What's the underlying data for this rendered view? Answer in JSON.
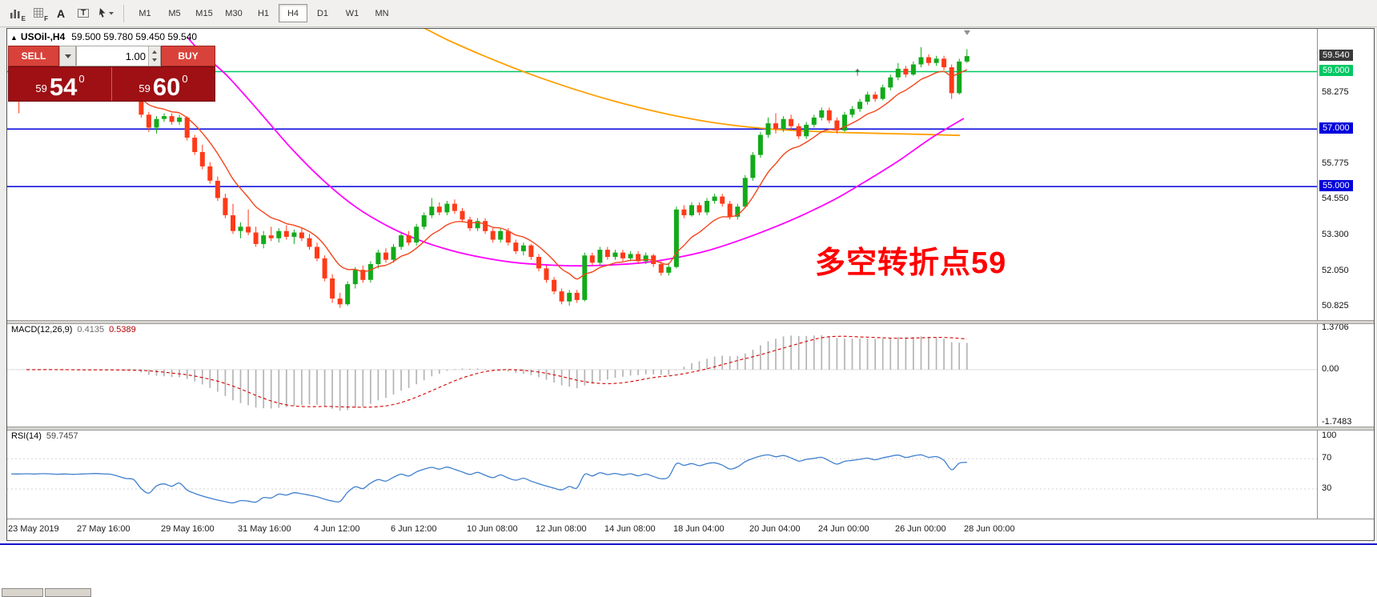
{
  "toolbar": {
    "icons": [
      {
        "name": "chart-window-icon",
        "glyph": "bars",
        "label": "E"
      },
      {
        "name": "grid-icon",
        "glyph": "grid",
        "label": "F"
      },
      {
        "name": "insert-text-icon",
        "glyph": "none",
        "label": "A"
      },
      {
        "name": "text-label-icon",
        "glyph": "box",
        "label": "T"
      },
      {
        "name": "cursor-tool-icon",
        "glyph": "cursor",
        "label": ""
      }
    ],
    "timeframes": [
      "M1",
      "M5",
      "M15",
      "M30",
      "H1",
      "H4",
      "D1",
      "W1",
      "MN"
    ],
    "active_timeframe": "H4"
  },
  "chart_window": {
    "title_arrow": "▲",
    "symbol_title": "USOil-,H4",
    "ohlc_text": "59.500 59.780 59.450 59.540",
    "annotation": {
      "text": "多空转折点59",
      "color": "#ff0000"
    },
    "marker_cross": "†"
  },
  "trade_panel": {
    "sell_label": "SELL",
    "buy_label": "BUY",
    "volume": "1.00",
    "sell_price": {
      "prefix": "59",
      "big": "54",
      "sup": "0"
    },
    "buy_price": {
      "prefix": "59",
      "big": "60",
      "sup": "0"
    }
  },
  "chart_data": {
    "type": "candlestick",
    "symbol": "USOil",
    "timeframe": "H4",
    "title": "USOil-,H4",
    "ohlc_current": {
      "open": 59.5,
      "high": 59.78,
      "low": 59.45,
      "close": 59.54
    },
    "ylim": [
      50.35,
      60.49
    ],
    "colors": {
      "up": "#12aa1a",
      "down": "#ff3a18"
    },
    "horizontal_lines": [
      {
        "price": 59.0,
        "color": "#00c864"
      },
      {
        "price": 57.0,
        "color": "#0000dc"
      },
      {
        "price": 55.0,
        "color": "#0000dc"
      }
    ],
    "y_axis": {
      "ticks": [
        {
          "label": "58.275",
          "price": 58.275
        },
        {
          "label": "55.775",
          "price": 55.775
        },
        {
          "label": "54.550",
          "price": 54.55
        },
        {
          "label": "53.300",
          "price": 53.3
        },
        {
          "label": "52.050",
          "price": 52.05
        },
        {
          "label": "50.825",
          "price": 50.825
        }
      ],
      "tags": [
        {
          "label": "59.540",
          "price": 59.54,
          "bg": "#3a3a3a"
        },
        {
          "label": "59.000",
          "price": 59.0,
          "bg": "#00c864"
        },
        {
          "label": "57.000",
          "price": 57.0,
          "bg": "#0000dc"
        },
        {
          "label": "55.000",
          "price": 55.0,
          "bg": "#0000dc"
        }
      ]
    },
    "x_axis_labels": [
      {
        "i": 0,
        "label": "23 May 2019"
      },
      {
        "i": 9,
        "label": "27 May 16:00"
      },
      {
        "i": 20,
        "label": "29 May 16:00"
      },
      {
        "i": 30,
        "label": "31 May 16:00"
      },
      {
        "i": 40,
        "label": "4 Jun 12:00"
      },
      {
        "i": 50,
        "label": "6 Jun 12:00"
      },
      {
        "i": 60,
        "label": "10 Jun 08:00"
      },
      {
        "i": 69,
        "label": "12 Jun 08:00"
      },
      {
        "i": 78,
        "label": "14 Jun 08:00"
      },
      {
        "i": 87,
        "label": "18 Jun 04:00"
      },
      {
        "i": 97,
        "label": "20 Jun 04:00"
      },
      {
        "i": 106,
        "label": "24 Jun 00:00"
      },
      {
        "i": 116,
        "label": "26 Jun 00:00"
      },
      {
        "i": 125,
        "label": "28 Jun 00:00"
      }
    ],
    "candles": [
      [
        58.2,
        58.4,
        58.05,
        58.3
      ],
      [
        58.3,
        58.4,
        57.55,
        58.25
      ],
      [
        58.25,
        58.45,
        58.15,
        58.35
      ],
      [
        58.35,
        58.45,
        58.15,
        58.25
      ],
      [
        58.25,
        58.5,
        58.15,
        58.4
      ],
      [
        58.4,
        58.5,
        58.2,
        58.3
      ],
      [
        58.3,
        58.4,
        58.05,
        58.15
      ],
      [
        58.15,
        58.35,
        58.05,
        58.25
      ],
      [
        58.25,
        58.35,
        58.0,
        58.1
      ],
      [
        58.1,
        58.3,
        58.0,
        58.2
      ],
      [
        58.2,
        58.45,
        58.1,
        58.35
      ],
      [
        58.35,
        58.55,
        58.25,
        58.45
      ],
      [
        58.45,
        58.55,
        58.2,
        58.3
      ],
      [
        58.3,
        58.4,
        58.05,
        58.15
      ],
      [
        58.15,
        58.3,
        58.05,
        58.2
      ],
      [
        58.2,
        58.3,
        58.0,
        58.1
      ],
      [
        58.1,
        58.2,
        57.95,
        58.05
      ],
      [
        58.05,
        58.15,
        57.4,
        57.5
      ],
      [
        57.5,
        57.6,
        56.9,
        57.05
      ],
      [
        57.05,
        57.45,
        56.85,
        57.35
      ],
      [
        57.35,
        57.55,
        57.25,
        57.45
      ],
      [
        57.45,
        57.55,
        57.15,
        57.25
      ],
      [
        57.25,
        57.5,
        57.15,
        57.4
      ],
      [
        57.4,
        57.45,
        56.6,
        56.7
      ],
      [
        56.7,
        56.8,
        56.1,
        56.2
      ],
      [
        56.2,
        56.45,
        55.6,
        55.7
      ],
      [
        55.7,
        55.85,
        55.1,
        55.2
      ],
      [
        55.2,
        55.35,
        54.5,
        54.6
      ],
      [
        54.6,
        54.75,
        53.9,
        54.0
      ],
      [
        54.0,
        54.4,
        53.35,
        53.45
      ],
      [
        53.45,
        53.75,
        53.2,
        53.6
      ],
      [
        53.6,
        54.2,
        53.3,
        53.4
      ],
      [
        53.4,
        53.6,
        52.9,
        53.0
      ],
      [
        53.0,
        53.45,
        52.85,
        53.3
      ],
      [
        53.3,
        53.6,
        53.1,
        53.2
      ],
      [
        53.2,
        53.55,
        53.05,
        53.45
      ],
      [
        53.45,
        53.65,
        53.15,
        53.25
      ],
      [
        53.25,
        53.5,
        53.0,
        53.4
      ],
      [
        53.4,
        53.55,
        53.1,
        53.2
      ],
      [
        53.2,
        53.35,
        52.8,
        52.9
      ],
      [
        52.9,
        53.05,
        52.4,
        52.5
      ],
      [
        52.5,
        52.6,
        51.7,
        51.8
      ],
      [
        51.8,
        51.95,
        50.95,
        51.1
      ],
      [
        51.1,
        51.3,
        50.78,
        50.9
      ],
      [
        50.9,
        51.7,
        50.85,
        51.6
      ],
      [
        51.6,
        52.2,
        51.45,
        52.1
      ],
      [
        52.1,
        52.25,
        51.65,
        51.75
      ],
      [
        51.75,
        52.4,
        51.65,
        52.3
      ],
      [
        52.3,
        52.8,
        52.15,
        52.7
      ],
      [
        52.7,
        52.85,
        52.35,
        52.45
      ],
      [
        52.45,
        53.0,
        52.35,
        52.9
      ],
      [
        52.9,
        53.4,
        52.8,
        53.3
      ],
      [
        53.3,
        53.45,
        52.95,
        53.05
      ],
      [
        53.05,
        53.7,
        52.95,
        53.6
      ],
      [
        53.6,
        54.1,
        53.5,
        54.0
      ],
      [
        54.0,
        54.6,
        53.9,
        54.3
      ],
      [
        54.3,
        54.45,
        54.0,
        54.1
      ],
      [
        54.1,
        54.5,
        54.0,
        54.4
      ],
      [
        54.4,
        54.55,
        54.05,
        54.15
      ],
      [
        54.15,
        54.25,
        53.75,
        53.85
      ],
      [
        53.85,
        53.95,
        53.45,
        53.55
      ],
      [
        53.55,
        53.9,
        53.45,
        53.8
      ],
      [
        53.8,
        53.9,
        53.35,
        53.45
      ],
      [
        53.45,
        53.55,
        53.05,
        53.15
      ],
      [
        53.15,
        53.55,
        53.05,
        53.45
      ],
      [
        53.45,
        53.55,
        52.95,
        53.05
      ],
      [
        53.05,
        53.15,
        52.65,
        52.75
      ],
      [
        52.75,
        53.05,
        52.6,
        52.95
      ],
      [
        52.95,
        53.0,
        52.45,
        52.55
      ],
      [
        52.55,
        52.65,
        52.05,
        52.15
      ],
      [
        52.15,
        52.25,
        51.65,
        51.75
      ],
      [
        51.75,
        51.85,
        51.25,
        51.35
      ],
      [
        51.35,
        51.45,
        50.9,
        51.0
      ],
      [
        51.0,
        51.4,
        50.85,
        51.3
      ],
      [
        51.3,
        51.4,
        50.95,
        51.05
      ],
      [
        51.05,
        52.7,
        51.0,
        52.6
      ],
      [
        52.6,
        52.7,
        52.25,
        52.35
      ],
      [
        52.35,
        52.9,
        52.25,
        52.8
      ],
      [
        52.8,
        52.9,
        52.45,
        52.55
      ],
      [
        52.55,
        52.8,
        52.45,
        52.7
      ],
      [
        52.7,
        52.8,
        52.4,
        52.5
      ],
      [
        52.5,
        52.75,
        52.4,
        52.65
      ],
      [
        52.65,
        52.75,
        52.3,
        52.4
      ],
      [
        52.4,
        52.7,
        52.3,
        52.6
      ],
      [
        52.6,
        52.65,
        52.2,
        52.3
      ],
      [
        52.3,
        52.4,
        51.9,
        52.0
      ],
      [
        52.0,
        52.3,
        51.9,
        52.2
      ],
      [
        52.2,
        54.3,
        52.15,
        54.2
      ],
      [
        54.2,
        54.35,
        53.9,
        54.0
      ],
      [
        54.0,
        54.45,
        53.95,
        54.35
      ],
      [
        54.35,
        54.45,
        54.0,
        54.1
      ],
      [
        54.1,
        54.6,
        54.0,
        54.5
      ],
      [
        54.5,
        54.75,
        54.4,
        54.65
      ],
      [
        54.65,
        54.75,
        54.3,
        54.4
      ],
      [
        54.4,
        54.5,
        53.85,
        53.95
      ],
      [
        53.95,
        54.4,
        53.85,
        54.3
      ],
      [
        54.3,
        55.4,
        54.25,
        55.3
      ],
      [
        55.3,
        56.2,
        55.2,
        56.1
      ],
      [
        56.1,
        56.9,
        56.0,
        56.8
      ],
      [
        56.8,
        57.4,
        56.7,
        57.2
      ],
      [
        57.2,
        57.55,
        56.85,
        57.0
      ],
      [
        57.0,
        57.45,
        56.9,
        57.35
      ],
      [
        57.35,
        57.5,
        56.95,
        57.1
      ],
      [
        57.1,
        57.2,
        56.65,
        56.75
      ],
      [
        56.75,
        57.25,
        56.65,
        57.15
      ],
      [
        57.15,
        57.5,
        57.05,
        57.4
      ],
      [
        57.4,
        57.75,
        57.3,
        57.65
      ],
      [
        57.65,
        57.75,
        57.2,
        57.3
      ],
      [
        57.3,
        57.4,
        56.85,
        56.95
      ],
      [
        56.95,
        57.6,
        56.9,
        57.5
      ],
      [
        57.5,
        57.8,
        57.4,
        57.7
      ],
      [
        57.7,
        58.05,
        57.6,
        57.95
      ],
      [
        57.95,
        58.3,
        57.85,
        58.2
      ],
      [
        58.2,
        58.3,
        57.95,
        58.05
      ],
      [
        58.05,
        58.55,
        58.0,
        58.45
      ],
      [
        58.45,
        58.9,
        58.35,
        58.8
      ],
      [
        58.8,
        59.3,
        58.7,
        59.1
      ],
      [
        59.1,
        59.2,
        58.8,
        58.9
      ],
      [
        58.9,
        59.35,
        58.85,
        59.25
      ],
      [
        59.25,
        59.85,
        59.15,
        59.5
      ],
      [
        59.5,
        59.6,
        59.2,
        59.3
      ],
      [
        59.3,
        59.55,
        59.2,
        59.45
      ],
      [
        59.45,
        59.55,
        59.05,
        59.15
      ],
      [
        59.15,
        59.25,
        58.05,
        58.25
      ],
      [
        58.25,
        59.45,
        58.2,
        59.35
      ],
      [
        59.35,
        59.78,
        59.3,
        59.54
      ]
    ],
    "overlays": {
      "ma_fast": {
        "kind": "ema",
        "period": 9,
        "color": "#f2461c"
      },
      "ma_orange": {
        "color": "#ff9f00",
        "points": [
          [
            48,
            60.95
          ],
          [
            52.4,
            60.7
          ],
          [
            57.1,
            60.1
          ],
          [
            61.8,
            59.55
          ],
          [
            66.5,
            59.05
          ],
          [
            71.2,
            58.6
          ],
          [
            75.9,
            58.2
          ],
          [
            80.6,
            57.85
          ],
          [
            85.3,
            57.55
          ],
          [
            90.1,
            57.3
          ],
          [
            94.8,
            57.12
          ],
          [
            99.5,
            57.0
          ],
          [
            104.2,
            56.93
          ],
          [
            108.9,
            56.88
          ],
          [
            113.6,
            56.85
          ],
          [
            118.3,
            56.82
          ],
          [
            124.1,
            56.78
          ]
        ]
      },
      "ma_magenta": {
        "color": "#ff00ff",
        "points": [
          [
            23,
            60.2
          ],
          [
            25.1,
            59.6
          ],
          [
            28.3,
            58.84
          ],
          [
            32.5,
            57.59
          ],
          [
            36.6,
            56.34
          ],
          [
            40.8,
            55.22
          ],
          [
            45,
            54.3
          ],
          [
            49.2,
            53.63
          ],
          [
            53.4,
            53.13
          ],
          [
            57.6,
            52.77
          ],
          [
            61.8,
            52.52
          ],
          [
            66,
            52.35
          ],
          [
            70.2,
            52.27
          ],
          [
            74.3,
            52.24
          ],
          [
            78.5,
            52.27
          ],
          [
            82.7,
            52.35
          ],
          [
            86.9,
            52.52
          ],
          [
            91.1,
            52.77
          ],
          [
            95.3,
            53.13
          ],
          [
            99.5,
            53.55
          ],
          [
            103.7,
            54.03
          ],
          [
            107.9,
            54.58
          ],
          [
            112,
            55.22
          ],
          [
            116.2,
            55.92
          ],
          [
            120.4,
            56.7
          ],
          [
            124.6,
            57.37
          ]
        ]
      }
    },
    "indicators": {
      "macd": {
        "label": "MACD(12,26,9)",
        "value_main": "0.4135",
        "value_signal": "0.5389",
        "fast": 12,
        "slow": 26,
        "signal": 9,
        "scale_top": 1.3706,
        "scale_bottom": -1.7483,
        "scale_top_label": "1.3706",
        "scale_zero_label": "0.00",
        "scale_bottom_label": "-1.7483",
        "histogram_color": "#b4b4b4",
        "signal_color": "#d40000"
      },
      "rsi": {
        "label": "RSI(14)",
        "value": "59.7457",
        "period": 14,
        "color": "#3f7fce",
        "scale_labels": [
          "100",
          "70",
          "30"
        ],
        "scale_values": [
          100,
          70,
          30
        ],
        "levels": [
          70,
          30
        ]
      }
    }
  }
}
